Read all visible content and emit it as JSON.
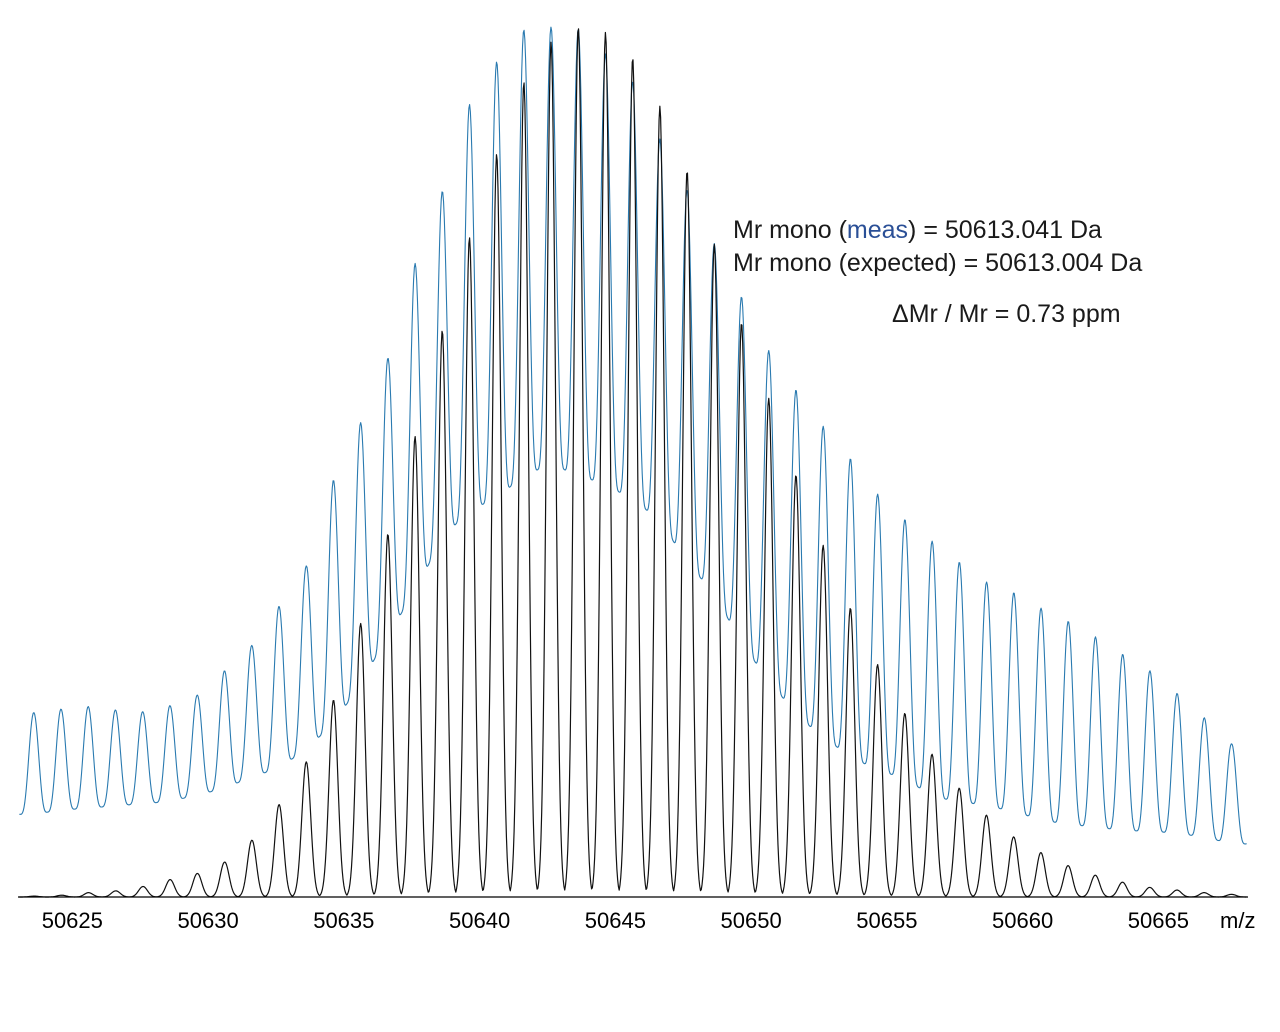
{
  "chart_data": {
    "type": "line",
    "title": "",
    "xlabel": "m/z",
    "ylabel": "",
    "xlim": [
      50623.0,
      50668.3
    ],
    "x_ticks": [
      50625,
      50630,
      50635,
      50640,
      50645,
      50650,
      50655,
      50660,
      50665
    ],
    "grid": false,
    "colors": {
      "measured": "#2a7ab0",
      "theoretical": "#111111"
    },
    "series": [
      {
        "key": "measured",
        "color": "#2a7ab0",
        "peak_start": 50623.58,
        "peak_spacing": 1.0027,
        "peak_heights": [
          0.212,
          0.216,
          0.219,
          0.215,
          0.213,
          0.22,
          0.232,
          0.26,
          0.289,
          0.334,
          0.38,
          0.479,
          0.545,
          0.619,
          0.728,
          0.811,
          0.911,
          0.96,
          0.997,
          1.0,
          0.998,
          0.969,
          0.938,
          0.871,
          0.813,
          0.751,
          0.69,
          0.628,
          0.583,
          0.541,
          0.504,
          0.463,
          0.434,
          0.409,
          0.385,
          0.362,
          0.35,
          0.332,
          0.317,
          0.299,
          0.279,
          0.26,
          0.234,
          0.206,
          0.176
        ],
        "valley_heights": [
          0.095,
          0.1,
          0.102,
          0.105,
          0.107,
          0.11,
          0.117,
          0.125,
          0.138,
          0.148,
          0.17,
          0.199,
          0.245,
          0.3,
          0.352,
          0.412,
          0.445,
          0.458,
          0.485,
          0.497,
          0.485,
          0.474,
          0.457,
          0.433,
          0.384,
          0.349,
          0.291,
          0.249,
          0.21,
          0.183,
          0.162,
          0.145,
          0.137,
          0.115,
          0.11,
          0.105,
          0.098,
          0.089,
          0.083,
          0.081,
          0.076,
          0.076,
          0.073,
          0.069,
          0.061
        ]
      },
      {
        "key": "theoretical",
        "color": "#111111",
        "peak_start": 50623.58,
        "peak_spacing": 1.0027,
        "peak_heights": [
          0.001,
          0.002,
          0.005,
          0.007,
          0.012,
          0.02,
          0.027,
          0.04,
          0.065,
          0.106,
          0.155,
          0.226,
          0.314,
          0.417,
          0.529,
          0.651,
          0.758,
          0.854,
          0.937,
          0.983,
          1.0,
          0.994,
          0.965,
          0.909,
          0.835,
          0.75,
          0.66,
          0.573,
          0.485,
          0.404,
          0.332,
          0.267,
          0.211,
          0.164,
          0.125,
          0.094,
          0.069,
          0.051,
          0.036,
          0.025,
          0.017,
          0.011,
          0.008,
          0.005,
          0.003
        ],
        "valley_heights": [
          0.0,
          0.0,
          0.0,
          0.0,
          0.0,
          0.0,
          0.0,
          0.0,
          0.0,
          0.0,
          0.0,
          0.0,
          0.0,
          0.0,
          0.0,
          0.0,
          0.0,
          0.0,
          0.0,
          0.0,
          0.0,
          0.0,
          0.0,
          0.0,
          0.0,
          0.0,
          0.0,
          0.0,
          0.0,
          0.0,
          0.0,
          0.0,
          0.0,
          0.0,
          0.0,
          0.0,
          0.0,
          0.0,
          0.0,
          0.0,
          0.0,
          0.0,
          0.0,
          0.0,
          0.0
        ]
      }
    ],
    "annotations": {
      "line1_prefix": "Mr mono (",
      "line1_meas": "meas",
      "line1_suffix": ") = 50613.041 Da",
      "line2": "Mr mono (expected) = 50613.004 Da",
      "line3": "ΔMr / Mr   = 0.73 ppm"
    }
  }
}
